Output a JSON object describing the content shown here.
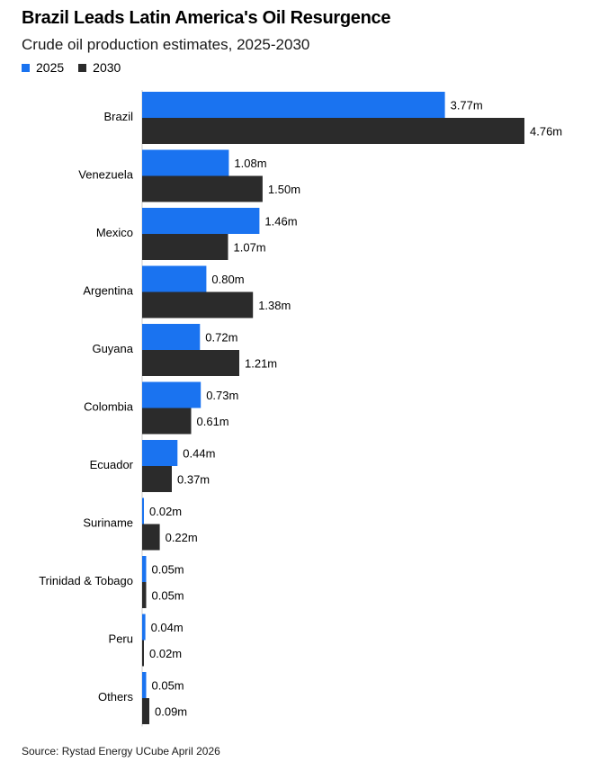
{
  "title": "Brazil Leads Latin America's Oil Resurgence",
  "subtitle": "Crude oil production estimates, 2025-2030",
  "source": "Source: Rystad Energy UCube April 2026",
  "colors": {
    "series_2025": "#1a73f0",
    "series_2030": "#2b2b2b"
  },
  "legend": [
    {
      "label": "2025",
      "color": "#1a73f0"
    },
    {
      "label": "2030",
      "color": "#2b2b2b"
    }
  ],
  "chart_data": {
    "type": "bar",
    "orientation": "horizontal",
    "categories": [
      "Brazil",
      "Venezuela",
      "Mexico",
      "Argentina",
      "Guyana",
      "Colombia",
      "Ecuador",
      "Suriname",
      "Trinidad & Tobago",
      "Peru",
      "Others"
    ],
    "series": [
      {
        "name": "2025",
        "values": [
          3.77,
          1.08,
          1.46,
          0.8,
          0.72,
          0.73,
          0.44,
          0.02,
          0.05,
          0.04,
          0.05
        ],
        "labels": [
          "3.77m",
          "1.08m",
          "1.46m",
          "0.80m",
          "0.72m",
          "0.73m",
          "0.44m",
          "0.02m",
          "0.05m",
          "0.04m",
          "0.05m"
        ]
      },
      {
        "name": "2030",
        "values": [
          4.76,
          1.5,
          1.07,
          1.38,
          1.21,
          0.61,
          0.37,
          0.22,
          0.05,
          0.02,
          0.09
        ],
        "labels": [
          "4.76m",
          "1.50m",
          "1.07m",
          "1.38m",
          "1.21m",
          "0.61m",
          "0.37m",
          "0.22m",
          "0.05m",
          "0.02m",
          "0.09m"
        ]
      }
    ],
    "xlim": [
      0,
      4.76
    ],
    "legend_position": "top-left",
    "grid": false
  }
}
